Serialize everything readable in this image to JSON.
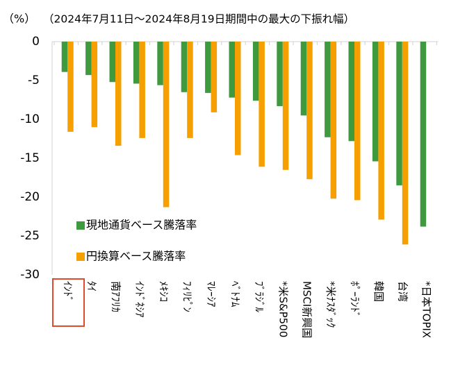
{
  "chart_data": {
    "type": "bar",
    "unit_label": "（%）",
    "title": "（2024年7月11日～2024年8月19日期間中の最大の下振れ幅）",
    "categories": [
      "ｲﾝﾄﾞ",
      "ﾀｲ",
      "南ｱﾌﾘｶ",
      "ｲﾝﾄﾞﾈｼｱ",
      "ﾒｷｼｺ",
      "ﾌｨﾘﾋﾟﾝ",
      "ﾏﾚｰｼｱ",
      "ﾍﾞﾄﾅﾑ",
      "ﾌﾞﾗｼﾞﾙ",
      "*米S&P500",
      "MSCI新興国",
      "*米ﾅｽﾀﾞｯｸ",
      "ﾎﾟｰﾗﾝﾄﾞ",
      "韓国",
      "台湾",
      "*日本TOPIX"
    ],
    "series": [
      {
        "name": "現地通貨ベース騰落率",
        "color": "#3f9a3f",
        "values": [
          -3.9,
          -4.3,
          -5.2,
          -5.4,
          -5.6,
          -6.5,
          -6.6,
          -7.2,
          -7.6,
          -8.3,
          -9.5,
          -12.3,
          -12.8,
          -15.4,
          -18.5,
          -23.8
        ]
      },
      {
        "name": "円換算ベース騰落率",
        "color": "#f5a000",
        "values": [
          -11.6,
          -11.0,
          -13.4,
          -12.4,
          -21.3,
          -12.4,
          -9.1,
          -14.6,
          -16.1,
          -16.5,
          -17.7,
          -20.2,
          -20.4,
          -22.9,
          -26.1,
          null
        ]
      }
    ],
    "ylim": [
      -30,
      0
    ],
    "yticks": [
      0,
      -5,
      -10,
      -15,
      -20,
      -25,
      -30
    ],
    "grid": false,
    "legend": "lower-left"
  }
}
